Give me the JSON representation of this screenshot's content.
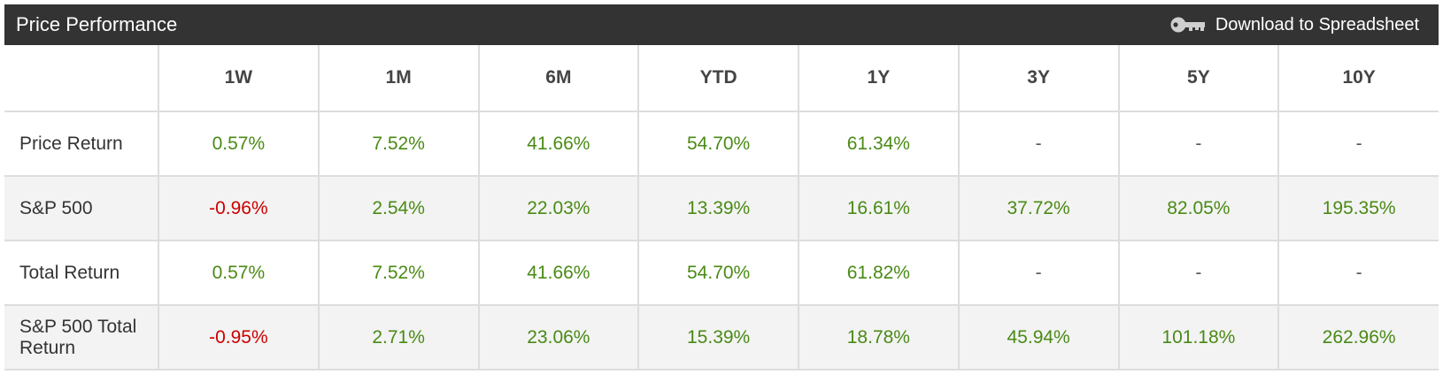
{
  "header": {
    "title": "Price Performance",
    "download_label": "Download to Spreadsheet",
    "download_icon": "key-icon"
  },
  "colors": {
    "header_bg": "#333333",
    "positive": "#4a8a15",
    "negative": "#cc0000",
    "alt_row_bg": "#f3f3f3"
  },
  "columns": [
    "1W",
    "1M",
    "6M",
    "YTD",
    "1Y",
    "3Y",
    "5Y",
    "10Y"
  ],
  "rows": [
    {
      "label": "Price Return",
      "values": [
        "0.57%",
        "7.52%",
        "41.66%",
        "54.70%",
        "61.34%",
        "-",
        "-",
        "-"
      ],
      "status": [
        "pos",
        "pos",
        "pos",
        "pos",
        "pos",
        "na",
        "na",
        "na"
      ]
    },
    {
      "label": "S&P 500",
      "values": [
        "-0.96%",
        "2.54%",
        "22.03%",
        "13.39%",
        "16.61%",
        "37.72%",
        "82.05%",
        "195.35%"
      ],
      "status": [
        "neg",
        "pos",
        "pos",
        "pos",
        "pos",
        "pos",
        "pos",
        "pos"
      ]
    },
    {
      "label": "Total Return",
      "values": [
        "0.57%",
        "7.52%",
        "41.66%",
        "54.70%",
        "61.82%",
        "-",
        "-",
        "-"
      ],
      "status": [
        "pos",
        "pos",
        "pos",
        "pos",
        "pos",
        "na",
        "na",
        "na"
      ]
    },
    {
      "label": "S&P 500 Total Return",
      "values": [
        "-0.95%",
        "2.71%",
        "23.06%",
        "15.39%",
        "18.78%",
        "45.94%",
        "101.18%",
        "262.96%"
      ],
      "status": [
        "neg",
        "pos",
        "pos",
        "pos",
        "pos",
        "pos",
        "pos",
        "pos"
      ]
    }
  ]
}
